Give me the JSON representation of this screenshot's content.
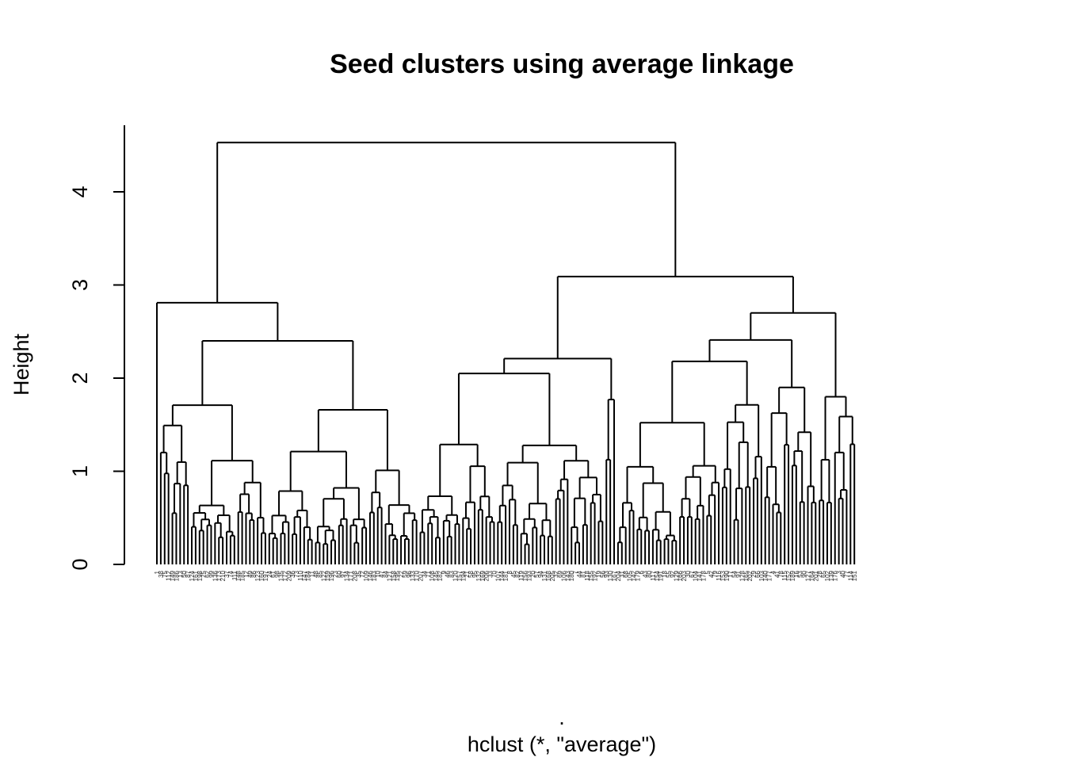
{
  "chart_data": {
    "type": "dendrogram",
    "title": "Seed clusters using average linkage",
    "ylabel": "Height",
    "xlabel": ".",
    "sub": "hclust (*, \"average\")",
    "ylim": [
      0,
      4.5
    ],
    "yticks": [
      0,
      1,
      2,
      3,
      4
    ],
    "leaf_count": 210,
    "top_merges": [
      {
        "name": "root",
        "height": 4.53
      },
      {
        "name": "left-cluster",
        "height": 2.81
      },
      {
        "name": "right-cluster",
        "height": 3.09
      },
      {
        "name": "left-inner",
        "height": 2.4
      },
      {
        "name": "right-inner-a",
        "height": 2.21
      },
      {
        "name": "right-inner-b",
        "height": 2.7
      }
    ],
    "line_color": "#000000"
  }
}
